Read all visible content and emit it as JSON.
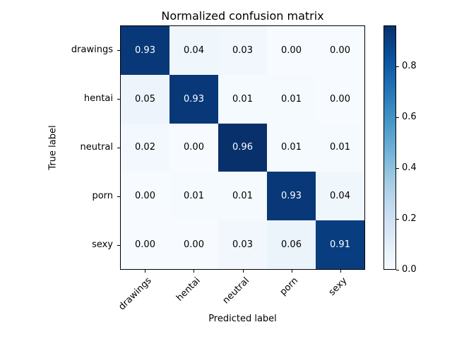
{
  "chart_data": {
    "type": "heatmap",
    "title": "Normalized confusion matrix",
    "xlabel": "Predicted label",
    "ylabel": "True label",
    "categories": [
      "drawings",
      "hentai",
      "neutral",
      "porn",
      "sexy"
    ],
    "matrix": [
      [
        0.93,
        0.04,
        0.03,
        0.0,
        0.0
      ],
      [
        0.05,
        0.93,
        0.01,
        0.01,
        0.0
      ],
      [
        0.02,
        0.0,
        0.96,
        0.01,
        0.01
      ],
      [
        0.0,
        0.01,
        0.01,
        0.93,
        0.04
      ],
      [
        0.0,
        0.0,
        0.03,
        0.06,
        0.91
      ]
    ],
    "value_format_decimals": 2,
    "vmin": 0.0,
    "vmax": 0.96,
    "grid": false,
    "colorbar": {
      "ticks": [
        0.0,
        0.2,
        0.4,
        0.6,
        0.8
      ],
      "tick_format_decimals": 1,
      "position": "right"
    },
    "colormap": {
      "name": "Blues",
      "stops": [
        {
          "t": 0.0,
          "color": "#f7fbff"
        },
        {
          "t": 0.125,
          "color": "#deebf7"
        },
        {
          "t": 0.25,
          "color": "#c6dbef"
        },
        {
          "t": 0.375,
          "color": "#9ecae1"
        },
        {
          "t": 0.5,
          "color": "#6baed6"
        },
        {
          "t": 0.625,
          "color": "#4292c6"
        },
        {
          "t": 0.75,
          "color": "#2171b5"
        },
        {
          "t": 0.875,
          "color": "#08519c"
        },
        {
          "t": 1.0,
          "color": "#08306b"
        }
      ]
    },
    "cell_text_colors": {
      "above_threshold": "#ffffff",
      "below_threshold": "#000000"
    },
    "axes_edge_color": "#000000",
    "background_color": "#ffffff"
  }
}
